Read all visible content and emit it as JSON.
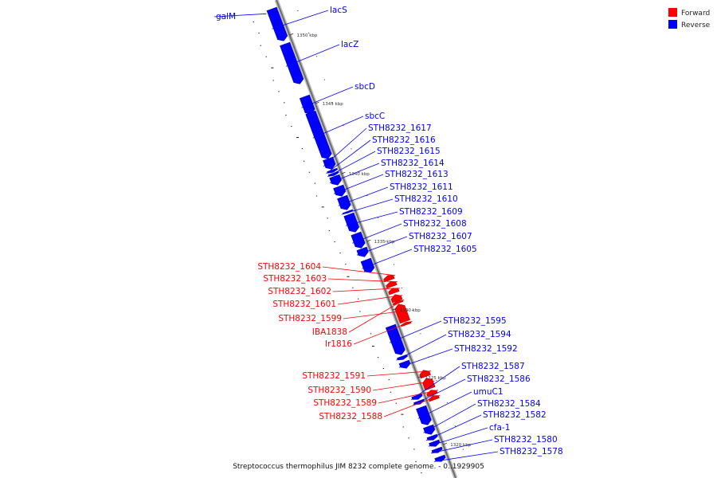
{
  "legend": {
    "forward_label": "Forward",
    "reverse_label": "Reverse",
    "forward_color": "#ff0000",
    "reverse_color": "#0000ff"
  },
  "caption": "Streptococcus thermophilus JIM 8232 complete genome. - 0..1929905",
  "ticks": [
    "1350 kbp",
    "1345 kbp",
    "1340 kbp",
    "1335 kbp",
    "1330 kbp",
    "1325 kbp",
    "1320 kbp"
  ],
  "genes": [
    {
      "name": "galM",
      "strand": "reverse"
    },
    {
      "name": "lacS",
      "strand": "reverse"
    },
    {
      "name": "lacZ",
      "strand": "reverse"
    },
    {
      "name": "sbcD",
      "strand": "reverse"
    },
    {
      "name": "sbcC",
      "strand": "reverse"
    },
    {
      "name": "STH8232_1617",
      "strand": "reverse"
    },
    {
      "name": "STH8232_1616",
      "strand": "reverse"
    },
    {
      "name": "STH8232_1615",
      "strand": "reverse"
    },
    {
      "name": "STH8232_1614",
      "strand": "reverse"
    },
    {
      "name": "STH8232_1613",
      "strand": "reverse"
    },
    {
      "name": "STH8232_1611",
      "strand": "reverse"
    },
    {
      "name": "STH8232_1610",
      "strand": "reverse"
    },
    {
      "name": "STH8232_1609",
      "strand": "reverse"
    },
    {
      "name": "STH8232_1608",
      "strand": "reverse"
    },
    {
      "name": "STH8232_1607",
      "strand": "reverse"
    },
    {
      "name": "STH8232_1605",
      "strand": "reverse"
    },
    {
      "name": "STH8232_1604",
      "strand": "forward"
    },
    {
      "name": "STH8232_1603",
      "strand": "forward"
    },
    {
      "name": "STH8232_1602",
      "strand": "forward"
    },
    {
      "name": "STH8232_1601",
      "strand": "forward"
    },
    {
      "name": "STH8232_1599",
      "strand": "forward"
    },
    {
      "name": "IBA1838",
      "strand": "forward"
    },
    {
      "name": "lr1816",
      "strand": "forward"
    },
    {
      "name": "STH8232_1595",
      "strand": "reverse"
    },
    {
      "name": "STH8232_1594",
      "strand": "reverse"
    },
    {
      "name": "STH8232_1592",
      "strand": "reverse"
    },
    {
      "name": "STH8232_1587",
      "strand": "reverse"
    },
    {
      "name": "STH8232_1586",
      "strand": "reverse"
    },
    {
      "name": "umuC1",
      "strand": "reverse"
    },
    {
      "name": "STH8232_1584",
      "strand": "reverse"
    },
    {
      "name": "STH8232_1582",
      "strand": "reverse"
    },
    {
      "name": "cfa-1",
      "strand": "reverse"
    },
    {
      "name": "STH8232_1580",
      "strand": "reverse"
    },
    {
      "name": "STH8232_1578",
      "strand": "reverse"
    },
    {
      "name": "STH8232_1591",
      "strand": "forward"
    },
    {
      "name": "STH8232_1590",
      "strand": "forward"
    },
    {
      "name": "STH8232_1589",
      "strand": "forward"
    },
    {
      "name": "STH8232_1588",
      "strand": "forward"
    }
  ]
}
